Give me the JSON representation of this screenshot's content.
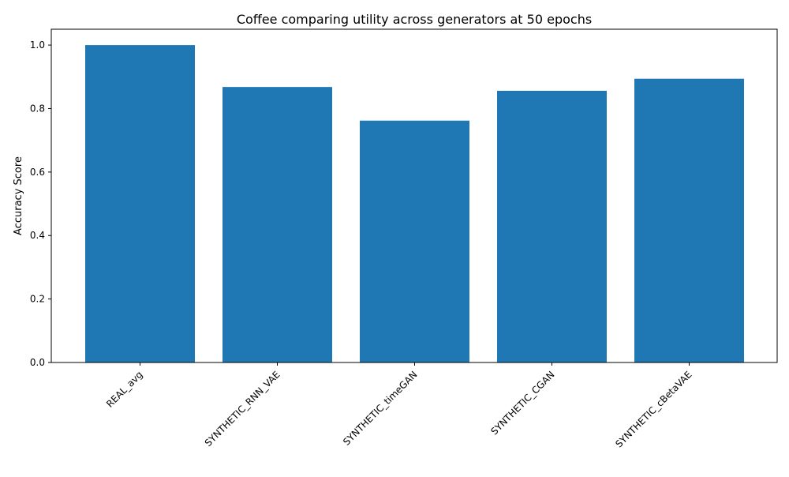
{
  "chart_data": {
    "type": "bar",
    "title": "Coffee comparing utility across generators at 50 epochs",
    "xlabel": "",
    "ylabel": "Accuracy Score",
    "categories": [
      "REAL_avg",
      "SYNTHETIC_RNN_VAE",
      "SYNTHETIC_timeGAN",
      "SYNTHETIC_CGAN",
      "SYNTHETIC_cBetaVAE"
    ],
    "values": [
      1.0,
      0.868,
      0.762,
      0.856,
      0.894
    ],
    "ylim": [
      0,
      1.05
    ],
    "yticks": [
      "0.0",
      "0.2",
      "0.4",
      "0.6",
      "0.8",
      "1.0"
    ],
    "grid": false,
    "legend": "none",
    "bar_color": "#1f77b4",
    "x_tick_rotation": "45deg, right-aligned"
  }
}
